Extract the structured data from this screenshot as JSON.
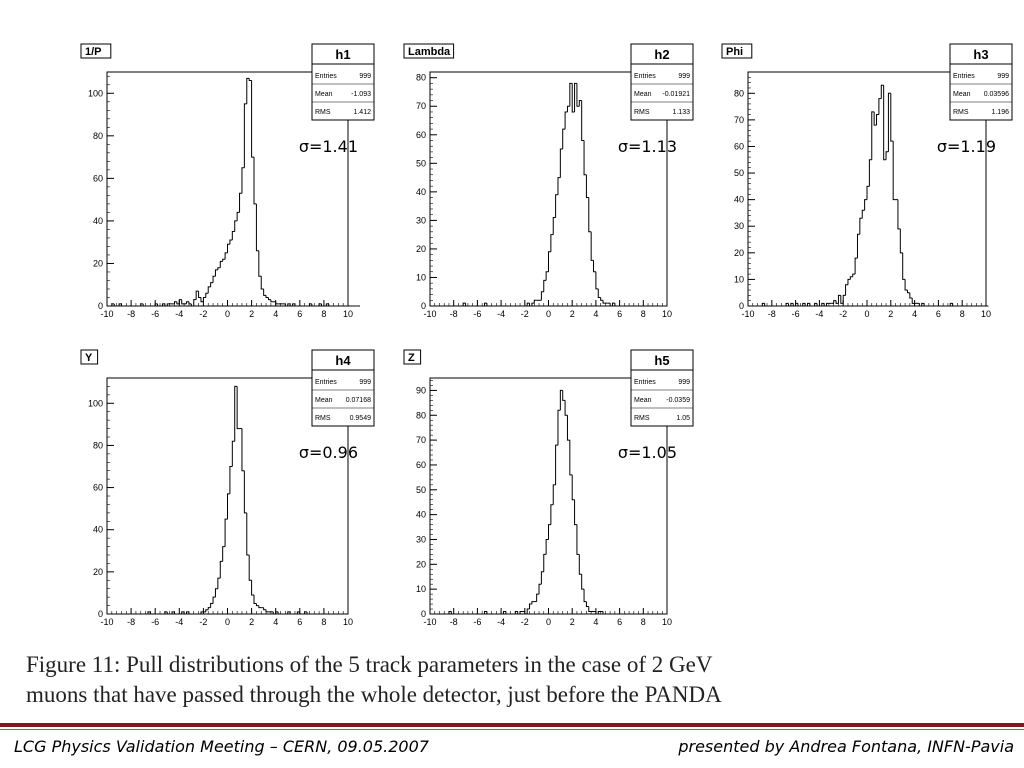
{
  "chart_data": [
    {
      "type": "bar",
      "name": "h1",
      "title": "1/P",
      "stats": {
        "Entries": "999",
        "Mean": "-1.093",
        "RMS": "1.412"
      },
      "sigma_label": "σ=1.41",
      "xlim": [
        -10,
        10
      ],
      "ylim": [
        0,
        110
      ],
      "yticks": [
        0,
        20,
        40,
        60,
        80,
        100
      ],
      "xticks": [
        -10,
        -8,
        -6,
        -4,
        -2,
        0,
        2,
        4,
        6,
        8,
        10
      ],
      "bin_start": -10,
      "bin_width": 0.2,
      "values": [
        0,
        0,
        1,
        0,
        0,
        1,
        0,
        0,
        0,
        0,
        0,
        0,
        0,
        0,
        1,
        0,
        0,
        0,
        0,
        0,
        1,
        0,
        0,
        1,
        0,
        1,
        1,
        1,
        2,
        1,
        3,
        1,
        1,
        2,
        1,
        0,
        3,
        7,
        4,
        2,
        4,
        6,
        9,
        11,
        14,
        17,
        18,
        21,
        22,
        25,
        29,
        31,
        35,
        40,
        44,
        53,
        65,
        95,
        107,
        106,
        70,
        48,
        26,
        14,
        8,
        5,
        4,
        3,
        2,
        2,
        1,
        1,
        1,
        1,
        0,
        1,
        0,
        1,
        0,
        0,
        0,
        0,
        0,
        0,
        1,
        0,
        0,
        0,
        1,
        0,
        0,
        1,
        0,
        0,
        0,
        0,
        0,
        0,
        0,
        0,
        0,
        0,
        0,
        0,
        0
      ]
    },
    {
      "type": "bar",
      "name": "h2",
      "title": "Lambda",
      "stats": {
        "Entries": "999",
        "Mean": "-0.01921",
        "RMS": "1.133"
      },
      "sigma_label": "σ=1.13",
      "xlim": [
        -10,
        10
      ],
      "ylim": [
        0,
        82
      ],
      "yticks": [
        0,
        10,
        20,
        30,
        40,
        50,
        60,
        70,
        80
      ],
      "xticks": [
        -10,
        -8,
        -6,
        -4,
        -2,
        0,
        2,
        4,
        6,
        8,
        10
      ],
      "bin_start": -10,
      "bin_width": 0.2,
      "values": [
        0,
        0,
        0,
        0,
        0,
        0,
        0,
        0,
        0,
        0,
        0,
        0,
        0,
        0,
        1,
        0,
        0,
        0,
        0,
        0,
        0,
        0,
        0,
        1,
        0,
        0,
        0,
        0,
        0,
        0,
        0,
        0,
        0,
        0,
        0,
        0,
        0,
        0,
        0,
        0,
        0,
        1,
        0,
        1,
        2,
        2,
        2,
        5,
        9,
        12,
        19,
        25,
        31,
        39,
        45,
        55,
        62,
        68,
        70,
        78,
        68,
        78,
        70,
        72,
        58,
        46,
        38,
        26,
        16,
        12,
        6,
        3,
        2,
        1,
        1,
        1,
        0,
        1,
        0,
        0,
        0,
        0,
        0,
        0,
        0,
        0,
        0,
        0,
        0,
        0,
        0,
        0,
        0,
        0,
        0,
        0,
        0,
        0,
        0,
        0
      ]
    },
    {
      "type": "bar",
      "name": "h3",
      "title": "Phi",
      "stats": {
        "Entries": "999",
        "Mean": "0.03596",
        "RMS": "1.196"
      },
      "sigma_label": "σ=1.19",
      "xlim": [
        -10,
        10
      ],
      "ylim": [
        0,
        88
      ],
      "yticks": [
        0,
        10,
        20,
        30,
        40,
        50,
        60,
        70,
        80
      ],
      "xticks": [
        -10,
        -8,
        -6,
        -4,
        -2,
        0,
        2,
        4,
        6,
        8,
        10
      ],
      "bin_start": -10,
      "bin_width": 0.2,
      "values": [
        0,
        0,
        0,
        0,
        0,
        0,
        1,
        0,
        0,
        0,
        0,
        0,
        0,
        0,
        0,
        0,
        1,
        0,
        1,
        0,
        1,
        0,
        0,
        1,
        0,
        1,
        0,
        0,
        1,
        0,
        0,
        1,
        0,
        1,
        1,
        1,
        2,
        1,
        4,
        1,
        4,
        8,
        10,
        11,
        12,
        18,
        27,
        33,
        36,
        40,
        45,
        55,
        73,
        68,
        72,
        78,
        83,
        55,
        58,
        80,
        62,
        40,
        40,
        29,
        20,
        10,
        6,
        5,
        3,
        1,
        1,
        1,
        0,
        1,
        0,
        0,
        0,
        0,
        0,
        0,
        0,
        0,
        0,
        0,
        0,
        1,
        0,
        0,
        0,
        0,
        0,
        0,
        0,
        0,
        0,
        0,
        0,
        0,
        0,
        0,
        0
      ]
    },
    {
      "type": "bar",
      "name": "h4",
      "title": "Y",
      "stats": {
        "Entries": "999",
        "Mean": "0.07168",
        "RMS": "0.9549"
      },
      "sigma_label": "σ=0.96",
      "xlim": [
        -10,
        10
      ],
      "ylim": [
        0,
        112
      ],
      "yticks": [
        0,
        20,
        40,
        60,
        80,
        100
      ],
      "xticks": [
        -10,
        -8,
        -6,
        -4,
        -2,
        0,
        2,
        4,
        6,
        8,
        10
      ],
      "bin_start": -10,
      "bin_width": 0.2,
      "values": [
        0,
        0,
        0,
        0,
        0,
        0,
        0,
        0,
        0,
        0,
        0,
        0,
        0,
        0,
        0,
        0,
        0,
        1,
        0,
        0,
        0,
        0,
        0,
        0,
        1,
        0,
        0,
        1,
        0,
        0,
        0,
        1,
        0,
        1,
        0,
        0,
        0,
        0,
        0,
        1,
        1,
        2,
        3,
        5,
        8,
        12,
        17,
        25,
        32,
        45,
        57,
        70,
        82,
        108,
        88,
        88,
        68,
        48,
        28,
        16,
        9,
        5,
        4,
        3,
        3,
        2,
        1,
        1,
        1,
        0,
        1,
        0,
        0,
        0,
        0,
        1,
        0,
        0,
        0,
        1,
        0,
        0,
        1,
        0,
        0,
        0,
        0,
        0,
        0,
        0,
        0,
        0,
        0,
        0,
        0,
        0,
        0,
        0,
        0,
        0
      ]
    },
    {
      "type": "bar",
      "name": "h5",
      "title": "Z",
      "stats": {
        "Entries": "999",
        "Mean": "-0.0359",
        "RMS": "1.05"
      },
      "sigma_label": "σ=1.05",
      "xlim": [
        -10,
        10
      ],
      "ylim": [
        0,
        95
      ],
      "yticks": [
        0,
        10,
        20,
        30,
        40,
        50,
        60,
        70,
        80,
        90
      ],
      "xticks": [
        -10,
        -8,
        -6,
        -4,
        -2,
        0,
        2,
        4,
        6,
        8,
        10
      ],
      "bin_start": -10,
      "bin_width": 0.2,
      "values": [
        0,
        0,
        0,
        0,
        0,
        0,
        0,
        0,
        1,
        0,
        0,
        0,
        0,
        0,
        0,
        0,
        0,
        0,
        0,
        0,
        0,
        0,
        0,
        1,
        0,
        0,
        0,
        0,
        0,
        0,
        0,
        1,
        0,
        0,
        0,
        0,
        1,
        0,
        1,
        1,
        0,
        2,
        4,
        5,
        5,
        8,
        12,
        17,
        24,
        30,
        36,
        44,
        52,
        68,
        82,
        90,
        86,
        80,
        70,
        56,
        46,
        36,
        24,
        16,
        10,
        5,
        3,
        1,
        1,
        1,
        0,
        1,
        1,
        0,
        0,
        0,
        0,
        0,
        0,
        0,
        0,
        0,
        0,
        0,
        0,
        0,
        0,
        0,
        0,
        0,
        0,
        0,
        0,
        0,
        0,
        0,
        0,
        0,
        0,
        0
      ]
    }
  ],
  "caption": {
    "line1": "Figure 11: Pull distributions of the 5 track parameters in the case of 2 GeV",
    "line2": "muons that have passed through the whole detector, just before the PANDA"
  },
  "footer": {
    "left": "LCG Physics Validation Meeting – CERN, 09.05.2007",
    "right": "presented by Andrea Fontana, INFN-Pavia"
  },
  "colors": {
    "divider": "#7b1a1a",
    "hist": "#000000"
  }
}
